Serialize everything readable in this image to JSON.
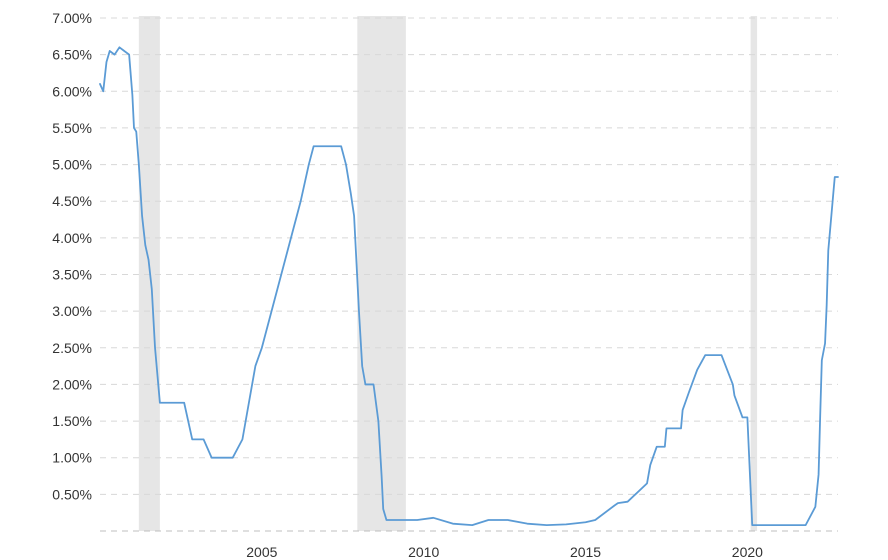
{
  "chart_data": {
    "type": "line",
    "title": "",
    "xlabel": "",
    "ylabel": "",
    "x_ticks": [
      2005,
      2010,
      2015,
      2020
    ],
    "y_ticks": [
      "7.00%",
      "6.50%",
      "6.00%",
      "5.50%",
      "5.00%",
      "4.50%",
      "4.00%",
      "3.50%",
      "3.00%",
      "2.50%",
      "2.00%",
      "1.50%",
      "1.00%",
      "0.50%"
    ],
    "y_tick_values": [
      7.0,
      6.5,
      6.0,
      5.5,
      5.0,
      4.5,
      4.0,
      3.5,
      3.0,
      2.5,
      2.0,
      1.5,
      1.0,
      0.5
    ],
    "xlim": [
      2000.0,
      2022.8
    ],
    "ylim": [
      0,
      7.0
    ],
    "grid": true,
    "legend": "none",
    "recession_periods": [
      [
        2001.2,
        2001.85
      ],
      [
        2007.95,
        2009.45
      ],
      [
        2020.1,
        2020.3
      ]
    ],
    "colors": {
      "line": "#5b9bd5",
      "recession": "#e6e6e6",
      "grid": "#d8d8d8",
      "text": "#333333"
    },
    "series": [
      {
        "x": [
          2000.0,
          2000.1,
          2000.2,
          2000.3,
          2000.45,
          2000.6,
          2000.75,
          2000.9,
          2001.0,
          2001.05,
          2001.12,
          2001.2,
          2001.3,
          2001.4,
          2001.5,
          2001.6,
          2001.7,
          2001.8,
          2001.85,
          2001.95,
          2002.0,
          2002.3,
          2002.6,
          2002.85,
          2002.9,
          2003.2,
          2003.45,
          2003.5,
          2003.8,
          2004.1,
          2004.4,
          2004.6,
          2004.8,
          2005.0,
          2005.3,
          2005.6,
          2005.9,
          2006.2,
          2006.45,
          2006.6,
          2006.9,
          2007.2,
          2007.45,
          2007.6,
          2007.75,
          2007.85,
          2008.0,
          2008.1,
          2008.2,
          2008.3,
          2008.45,
          2008.6,
          2008.7,
          2008.75,
          2008.85,
          2008.95,
          2009.3,
          2009.8,
          2010.3,
          2010.9,
          2011.5,
          2012.0,
          2012.6,
          2013.2,
          2013.8,
          2014.4,
          2015.0,
          2015.3,
          2015.9,
          2016.0,
          2016.3,
          2016.9,
          2017.0,
          2017.2,
          2017.45,
          2017.5,
          2017.95,
          2018.0,
          2018.2,
          2018.45,
          2018.7,
          2018.95,
          2019.2,
          2019.55,
          2019.6,
          2019.85,
          2019.95,
          2020.0,
          2020.15,
          2020.25,
          2020.6,
          2021.2,
          2021.8,
          2022.1,
          2022.2,
          2022.25,
          2022.3,
          2022.4,
          2022.45,
          2022.5,
          2022.6,
          2022.65,
          2022.7,
          2022.8
        ],
        "y": [
          6.1,
          6.0,
          6.4,
          6.55,
          6.5,
          6.6,
          6.55,
          6.5,
          5.95,
          5.5,
          5.45,
          5.0,
          4.3,
          3.9,
          3.7,
          3.3,
          2.5,
          2.0,
          1.75,
          1.75,
          1.75,
          1.75,
          1.75,
          1.25,
          1.25,
          1.25,
          1.0,
          1.0,
          1.0,
          1.0,
          1.25,
          1.75,
          2.25,
          2.5,
          3.0,
          3.5,
          4.0,
          4.5,
          5.0,
          5.25,
          5.25,
          5.25,
          5.25,
          5.0,
          4.6,
          4.3,
          3.0,
          2.25,
          2.0,
          2.0,
          2.0,
          1.5,
          0.75,
          0.3,
          0.15,
          0.15,
          0.15,
          0.15,
          0.18,
          0.1,
          0.08,
          0.15,
          0.15,
          0.1,
          0.08,
          0.09,
          0.12,
          0.15,
          0.35,
          0.38,
          0.4,
          0.65,
          0.9,
          1.15,
          1.15,
          1.4,
          1.4,
          1.65,
          1.9,
          2.2,
          2.4,
          2.4,
          2.4,
          2.0,
          1.85,
          1.55,
          1.55,
          1.55,
          0.08,
          0.08,
          0.08,
          0.08,
          0.08,
          0.33,
          0.77,
          1.58,
          2.33,
          2.56,
          3.08,
          3.83,
          4.33,
          4.58,
          4.83,
          4.83
        ]
      }
    ]
  }
}
